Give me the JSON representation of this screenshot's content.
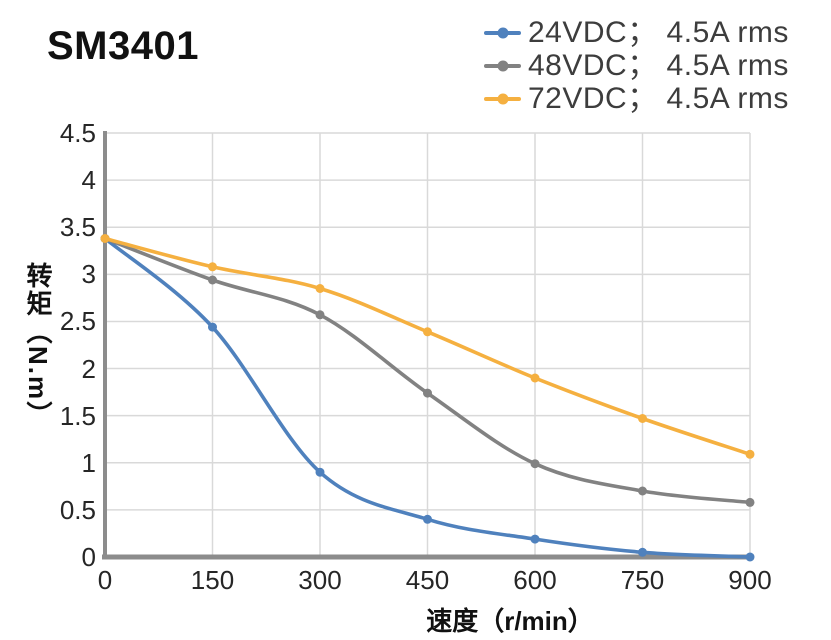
{
  "title": "SM3401",
  "legend": [
    {
      "label": "24VDC； 4.5A rms",
      "color": "#4F81BD"
    },
    {
      "label": "48VDC； 4.5A rms",
      "color": "#828282"
    },
    {
      "label": "72VDC； 4.5A rms",
      "color": "#F5B040"
    }
  ],
  "colors": {
    "grid": "#D9D9D9",
    "axis": "#8C8C8C",
    "tick_text": "#262626",
    "series_blue": "#4F81BD",
    "series_gray": "#828282",
    "series_orange": "#F5B040"
  },
  "chart_data": {
    "type": "line",
    "title": "SM3401",
    "x": [
      0,
      150,
      300,
      450,
      600,
      750,
      900
    ],
    "series": [
      {
        "name": "24VDC； 4.5A rms",
        "color": "#4F81BD",
        "values": [
          3.38,
          2.44,
          0.9,
          0.4,
          0.19,
          0.05,
          0.0
        ]
      },
      {
        "name": "48VDC； 4.5A rms",
        "color": "#828282",
        "values": [
          3.38,
          2.94,
          2.57,
          1.74,
          0.99,
          0.7,
          0.58
        ]
      },
      {
        "name": "72VDC； 4.5A rms",
        "color": "#F5B040",
        "values": [
          3.38,
          3.08,
          2.85,
          2.39,
          1.9,
          1.47,
          1.09
        ]
      }
    ],
    "xlabel": "速度（r/min）",
    "ylabel": "转矩（N.m）",
    "xlim": [
      0,
      900
    ],
    "ylim": [
      0,
      4.5
    ],
    "x_ticks": [
      0,
      150,
      300,
      450,
      600,
      750,
      900
    ],
    "x_tick_labels": [
      "0",
      "150",
      "300",
      "450",
      "600",
      "750",
      "900"
    ],
    "y_ticks": [
      0,
      0.5,
      1,
      1.5,
      2,
      2.5,
      3,
      3.5,
      4,
      4.5
    ],
    "y_tick_labels": [
      "0",
      "0.5",
      "1",
      "1.5",
      "2",
      "2.5",
      "3",
      "3.5",
      "4",
      "4.5"
    ],
    "grid": true,
    "legend_position": "top-right",
    "smooth_lines": true,
    "marker": "circle"
  }
}
